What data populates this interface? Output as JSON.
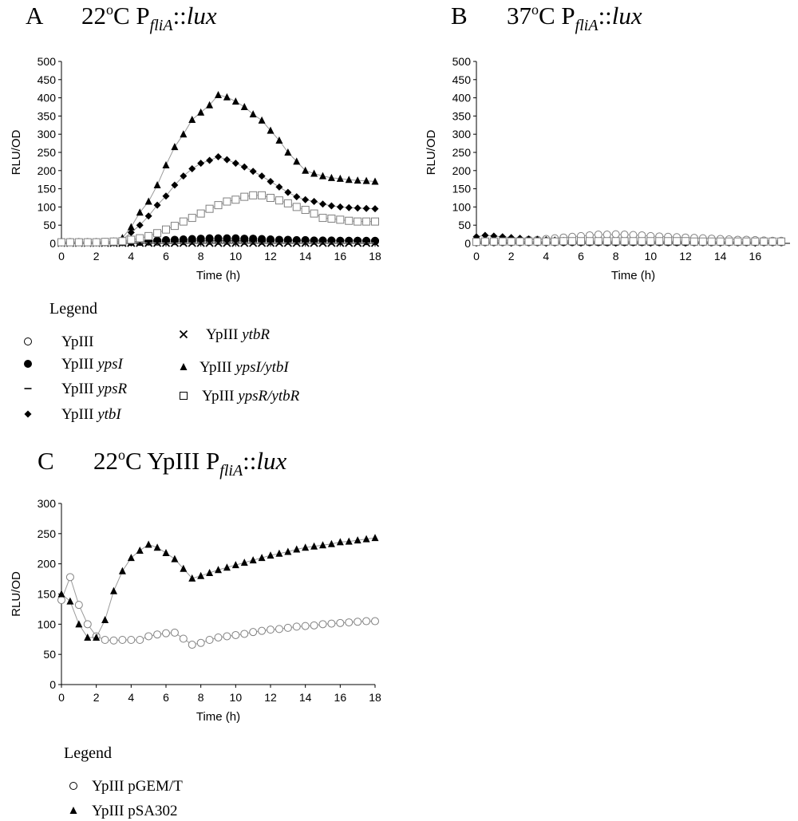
{
  "panels": [
    {
      "letter": "A",
      "title": {
        "pre": "22",
        "sup": "o",
        "mid": "C P",
        "sub": "fliA",
        "post": "::",
        "italic": "lux"
      }
    },
    {
      "letter": "B",
      "title": {
        "pre": "37",
        "sup": "o",
        "mid": "C P",
        "sub": "fliA",
        "post": "::",
        "italic": "lux"
      }
    },
    {
      "letter": "C",
      "title": {
        "pre": "22",
        "sup": "o",
        "mid": "C YpIII P",
        "sub": "fliA",
        "post": "::",
        "italic": "lux"
      }
    }
  ],
  "legend_ab": {
    "heading": "Legend",
    "entries": [
      {
        "marker": "circle-open",
        "name": "YpIII",
        "italic": ""
      },
      {
        "marker": "circle-filled",
        "name": "YpIII",
        "italic": "ypsI"
      },
      {
        "marker": "dash",
        "name": "YpIII",
        "italic": "ypsR"
      },
      {
        "marker": "diamond-filled",
        "name": "YpIII",
        "italic": "ytbI"
      },
      {
        "marker": "cross",
        "name": "YpIII",
        "italic": "ytbR"
      },
      {
        "marker": "triangle-filled",
        "name": "YpIII",
        "italic": "ypsI/ytbI"
      },
      {
        "marker": "square-open",
        "name": "YpIII",
        "italic": "ypsR/ytbR"
      }
    ]
  },
  "legend_c": {
    "heading": "Legend",
    "entries": [
      {
        "marker": "circle-open",
        "name": "YpIII pGEM/T"
      },
      {
        "marker": "triangle-filled",
        "name": "YpIII pSA302"
      }
    ]
  },
  "chart_data": [
    {
      "panel": "A",
      "type": "line",
      "xlabel": "Time (h)",
      "ylabel": "RLU/OD",
      "xlim": [
        0,
        18
      ],
      "ylim": [
        0,
        500
      ],
      "xticks": [
        0,
        2,
        4,
        6,
        8,
        10,
        12,
        14,
        16,
        18
      ],
      "yticks": [
        0,
        50,
        100,
        150,
        200,
        250,
        300,
        350,
        400,
        450,
        500
      ],
      "x": [
        0,
        0.5,
        1,
        1.5,
        2,
        2.5,
        3,
        3.5,
        4,
        4.5,
        5,
        5.5,
        6,
        6.5,
        7,
        7.5,
        8,
        8.5,
        9,
        9.5,
        10,
        10.5,
        11,
        11.5,
        12,
        12.5,
        13,
        13.5,
        14,
        14.5,
        15,
        15.5,
        16,
        16.5,
        17,
        17.5,
        18
      ],
      "series": [
        {
          "marker": "circle-open",
          "color": "#000000",
          "values": [
            3,
            3,
            3,
            3,
            3,
            3,
            3,
            3,
            4,
            4,
            5,
            5,
            6,
            6,
            6,
            7,
            7,
            7,
            7,
            7,
            7,
            7,
            7,
            7,
            7,
            7,
            7,
            7,
            7,
            7,
            7,
            7,
            7,
            7,
            7,
            7,
            7
          ]
        },
        {
          "marker": "circle-filled",
          "color": "#000000",
          "values": [
            3,
            3,
            3,
            3,
            3,
            3,
            3,
            4,
            5,
            6,
            7,
            8,
            9,
            10,
            11,
            12,
            13,
            14,
            14,
            14,
            14,
            13,
            13,
            12,
            11,
            10,
            10,
            9,
            9,
            8,
            8,
            8,
            7,
            7,
            7,
            6,
            6
          ]
        },
        {
          "marker": "dash",
          "color": "#000000",
          "values": [
            2,
            2,
            2,
            2,
            2,
            2,
            2,
            2,
            2,
            2,
            2,
            2,
            2,
            2,
            2,
            2,
            2,
            2,
            2,
            2,
            2,
            2,
            2,
            2,
            2,
            2,
            2,
            2,
            2,
            2,
            2,
            2,
            2,
            2,
            2,
            2,
            2
          ]
        },
        {
          "marker": "diamond-filled",
          "color": "#000000",
          "values": [
            3,
            3,
            3,
            3,
            3,
            3,
            4,
            10,
            30,
            50,
            75,
            105,
            130,
            160,
            185,
            205,
            220,
            228,
            238,
            230,
            220,
            210,
            198,
            185,
            170,
            155,
            140,
            128,
            120,
            115,
            108,
            103,
            100,
            98,
            97,
            96,
            95
          ]
        },
        {
          "marker": "cross",
          "color": "#000000",
          "values": [
            1,
            1,
            1,
            1,
            1,
            1,
            1,
            1,
            1,
            1,
            1,
            1,
            1,
            1,
            1,
            1,
            1,
            1,
            1,
            1,
            1,
            1,
            1,
            1,
            1,
            1,
            1,
            1,
            1,
            1,
            1,
            1,
            1,
            1,
            1,
            1,
            1
          ]
        },
        {
          "marker": "triangle-filled",
          "color": "#000000",
          "values": [
            4,
            4,
            4,
            4,
            4,
            4,
            6,
            15,
            45,
            85,
            115,
            160,
            215,
            265,
            300,
            340,
            360,
            380,
            408,
            402,
            390,
            375,
            355,
            338,
            310,
            283,
            250,
            225,
            200,
            192,
            185,
            180,
            178,
            175,
            173,
            172,
            170
          ]
        },
        {
          "marker": "square-open",
          "color": "#808080",
          "values": [
            3,
            3,
            3,
            3,
            3,
            4,
            5,
            6,
            10,
            14,
            20,
            28,
            38,
            48,
            60,
            70,
            82,
            95,
            105,
            115,
            120,
            128,
            132,
            132,
            125,
            118,
            110,
            100,
            92,
            82,
            70,
            68,
            65,
            62,
            60,
            60,
            60
          ]
        }
      ]
    },
    {
      "panel": "B",
      "type": "line",
      "xlabel": "Time (h)",
      "ylabel": "RLU/OD",
      "xlim": [
        0,
        18
      ],
      "ylim": [
        0,
        500
      ],
      "xticks": [
        0,
        2,
        4,
        6,
        8,
        10,
        12,
        14,
        16
      ],
      "yticks": [
        0,
        50,
        100,
        150,
        200,
        250,
        300,
        350,
        400,
        450,
        500
      ],
      "x": [
        0,
        0.5,
        1,
        1.5,
        2,
        2.5,
        3,
        3.5,
        4,
        4.5,
        5,
        5.5,
        6,
        6.5,
        7,
        7.5,
        8,
        8.5,
        9,
        9.5,
        10,
        10.5,
        11,
        11.5,
        12,
        12.5,
        13,
        13.5,
        14,
        14.5,
        15,
        15.5,
        16,
        16.5,
        17,
        17.5
      ],
      "series": [
        {
          "marker": "circle-open",
          "color": "#808080",
          "values": [
            5,
            6,
            7,
            8,
            9,
            9,
            10,
            10,
            12,
            14,
            16,
            18,
            20,
            22,
            24,
            24,
            25,
            24,
            23,
            22,
            20,
            19,
            18,
            17,
            16,
            15,
            14,
            13,
            12,
            11,
            10,
            10,
            9,
            8,
            7,
            7
          ]
        },
        {
          "marker": "circle-filled",
          "color": "#000000",
          "values": [
            3,
            3,
            3,
            3,
            3,
            3,
            3,
            3,
            3,
            3,
            3,
            3,
            3,
            3,
            3,
            3,
            3,
            3,
            3,
            3,
            3,
            3,
            3,
            3,
            3,
            3,
            3,
            3,
            3,
            3,
            3,
            3,
            3,
            3,
            3,
            3
          ]
        },
        {
          "marker": "diamond-filled",
          "color": "#000000",
          "values": [
            18,
            22,
            20,
            18,
            16,
            14,
            12,
            11,
            10,
            9,
            8,
            7,
            6,
            6,
            5,
            5,
            5,
            4,
            4,
            4,
            4,
            4,
            4,
            4,
            4,
            4,
            4,
            4,
            4,
            4,
            4,
            4,
            4,
            4,
            4,
            4
          ]
        },
        {
          "marker": "triangle-filled",
          "color": "#000000",
          "values": [
            8,
            10,
            9,
            8,
            7,
            6,
            5,
            5,
            5,
            4,
            4,
            4,
            3,
            3,
            3,
            3,
            3,
            3,
            3,
            3,
            3,
            3,
            3,
            3,
            3,
            3,
            3,
            3,
            3,
            3,
            3,
            3,
            3,
            3,
            3,
            3
          ]
        },
        {
          "marker": "square-open",
          "color": "#808080",
          "values": [
            4,
            5,
            5,
            5,
            5,
            5,
            5,
            5,
            5,
            5,
            6,
            6,
            6,
            6,
            6,
            6,
            6,
            6,
            6,
            6,
            6,
            6,
            6,
            6,
            6,
            5,
            5,
            5,
            5,
            5,
            5,
            5,
            5,
            5,
            5,
            5
          ]
        }
      ]
    },
    {
      "panel": "C",
      "type": "line",
      "xlabel": "Time (h)",
      "ylabel": "RLU/OD",
      "xlim": [
        0,
        18
      ],
      "ylim": [
        0,
        300
      ],
      "xticks": [
        0,
        2,
        4,
        6,
        8,
        10,
        12,
        14,
        16,
        18
      ],
      "yticks": [
        0,
        50,
        100,
        150,
        200,
        250,
        300
      ],
      "x": [
        0,
        0.5,
        1,
        1.5,
        2,
        2.5,
        3,
        3.5,
        4,
        4.5,
        5,
        5.5,
        6,
        6.5,
        7,
        7.5,
        8,
        8.5,
        9,
        9.5,
        10,
        10.5,
        11,
        11.5,
        12,
        12.5,
        13,
        13.5,
        14,
        14.5,
        15,
        15.5,
        16,
        16.5,
        17,
        17.5,
        18
      ],
      "series": [
        {
          "name": "YpIII pGEM/T",
          "marker": "circle-open",
          "color": "#808080",
          "values": [
            140,
            178,
            132,
            100,
            80,
            74,
            73,
            74,
            74,
            74,
            80,
            83,
            85,
            86,
            76,
            66,
            69,
            74,
            78,
            80,
            82,
            84,
            87,
            89,
            91,
            92,
            94,
            96,
            97,
            98,
            100,
            101,
            102,
            103,
            104,
            105,
            105
          ]
        },
        {
          "name": "YpIII pSA302",
          "marker": "triangle-filled",
          "color": "#000000",
          "values": [
            150,
            138,
            100,
            78,
            78,
            107,
            155,
            188,
            210,
            222,
            232,
            227,
            218,
            208,
            192,
            176,
            180,
            185,
            190,
            194,
            198,
            202,
            206,
            210,
            214,
            217,
            220,
            224,
            227,
            229,
            231,
            233,
            236,
            237,
            239,
            241,
            243
          ]
        }
      ]
    }
  ]
}
